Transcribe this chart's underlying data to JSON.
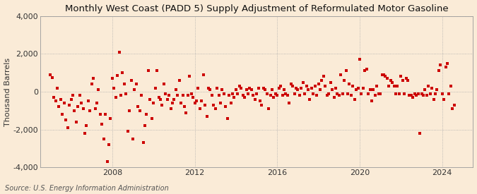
{
  "title": "Monthly West Coast (PADD 5) Supply Adjustment of Reformulated Motor Gasoline",
  "ylabel": "Thousand Barrels",
  "source": "Source: U.S. Energy Information Administration",
  "background_color": "#faebd7",
  "plot_background_color": "#faebd7",
  "dot_color": "#cc0000",
  "dot_size": 5,
  "ylim": [
    -4000,
    4000
  ],
  "yticks": [
    -4000,
    -2000,
    0,
    2000,
    4000
  ],
  "ytick_labels": [
    "-4,000",
    "-2,000",
    "0",
    "2,000",
    "4,000"
  ],
  "grid_color": "#aaaaaa",
  "grid_linestyle": ":",
  "title_fontsize": 9.5,
  "ylabel_fontsize": 8,
  "tick_fontsize": 8,
  "source_fontsize": 7,
  "x_values": [
    2005.0,
    2005.083,
    2005.167,
    2005.25,
    2005.333,
    2005.417,
    2005.5,
    2005.583,
    2005.667,
    2005.75,
    2005.833,
    2005.917,
    2006.0,
    2006.083,
    2006.167,
    2006.25,
    2006.333,
    2006.417,
    2006.5,
    2006.583,
    2006.667,
    2006.75,
    2006.833,
    2006.917,
    2007.0,
    2007.083,
    2007.167,
    2007.25,
    2007.333,
    2007.417,
    2007.5,
    2007.583,
    2007.667,
    2007.75,
    2007.833,
    2007.917,
    2008.0,
    2008.083,
    2008.167,
    2008.25,
    2008.333,
    2008.417,
    2008.5,
    2008.583,
    2008.667,
    2008.75,
    2008.833,
    2008.917,
    2009.0,
    2009.083,
    2009.167,
    2009.25,
    2009.333,
    2009.417,
    2009.5,
    2009.583,
    2009.667,
    2009.75,
    2009.833,
    2009.917,
    2010.0,
    2010.083,
    2010.167,
    2010.25,
    2010.333,
    2010.417,
    2010.5,
    2010.583,
    2010.667,
    2010.75,
    2010.833,
    2010.917,
    2011.0,
    2011.083,
    2011.167,
    2011.25,
    2011.333,
    2011.417,
    2011.5,
    2011.583,
    2011.667,
    2011.75,
    2011.833,
    2011.917,
    2012.0,
    2012.083,
    2012.167,
    2012.25,
    2012.333,
    2012.417,
    2012.5,
    2012.583,
    2012.667,
    2012.75,
    2012.833,
    2012.917,
    2013.0,
    2013.083,
    2013.167,
    2013.25,
    2013.333,
    2013.417,
    2013.5,
    2013.583,
    2013.667,
    2013.75,
    2013.833,
    2013.917,
    2014.0,
    2014.083,
    2014.167,
    2014.25,
    2014.333,
    2014.417,
    2014.5,
    2014.583,
    2014.667,
    2014.75,
    2014.833,
    2014.917,
    2015.0,
    2015.083,
    2015.167,
    2015.25,
    2015.333,
    2015.417,
    2015.5,
    2015.583,
    2015.667,
    2015.75,
    2015.833,
    2015.917,
    2016.0,
    2016.083,
    2016.167,
    2016.25,
    2016.333,
    2016.417,
    2016.5,
    2016.583,
    2016.667,
    2016.75,
    2016.833,
    2016.917,
    2017.0,
    2017.083,
    2017.167,
    2017.25,
    2017.333,
    2017.417,
    2017.5,
    2017.583,
    2017.667,
    2017.75,
    2017.833,
    2017.917,
    2018.0,
    2018.083,
    2018.167,
    2018.25,
    2018.333,
    2018.417,
    2018.5,
    2018.583,
    2018.667,
    2018.75,
    2018.833,
    2018.917,
    2019.0,
    2019.083,
    2019.167,
    2019.25,
    2019.333,
    2019.417,
    2019.5,
    2019.583,
    2019.667,
    2019.75,
    2019.833,
    2019.917,
    2020.0,
    2020.083,
    2020.167,
    2020.25,
    2020.333,
    2020.417,
    2020.5,
    2020.583,
    2020.667,
    2020.75,
    2020.833,
    2020.917,
    2021.0,
    2021.083,
    2021.167,
    2021.25,
    2021.333,
    2021.417,
    2021.5,
    2021.583,
    2021.667,
    2021.75,
    2021.833,
    2021.917,
    2022.0,
    2022.083,
    2022.167,
    2022.25,
    2022.333,
    2022.417,
    2022.5,
    2022.583,
    2022.667,
    2022.75,
    2022.833,
    2022.917,
    2023.0,
    2023.083,
    2023.167,
    2023.25,
    2023.333,
    2023.417,
    2023.5,
    2023.583,
    2023.667,
    2023.75,
    2023.833,
    2023.917,
    2024.0,
    2024.083,
    2024.167,
    2024.25,
    2024.333,
    2024.417,
    2024.5,
    2024.583
  ],
  "y_values": [
    900,
    750,
    -300,
    -500,
    200,
    -800,
    -400,
    -1200,
    -600,
    -1500,
    -1900,
    -700,
    -400,
    -200,
    -1000,
    -1600,
    -800,
    -200,
    -600,
    -900,
    -2200,
    -1800,
    -500,
    -1000,
    400,
    700,
    -900,
    -600,
    100,
    -1200,
    -1700,
    -2500,
    -1200,
    -3700,
    -2800,
    -1400,
    700,
    200,
    -300,
    850,
    2100,
    -200,
    1000,
    400,
    -100,
    -2100,
    -1000,
    600,
    -2500,
    100,
    400,
    -800,
    -1000,
    -200,
    -2700,
    -1800,
    -1200,
    1100,
    -400,
    -1400,
    -600,
    200,
    1100,
    -300,
    -400,
    -700,
    400,
    -100,
    -400,
    -200,
    -900,
    -600,
    -400,
    100,
    -200,
    600,
    -600,
    -200,
    -800,
    -1100,
    -200,
    800,
    -100,
    -300,
    -600,
    -500,
    200,
    -900,
    -500,
    900,
    -700,
    -1300,
    200,
    100,
    -200,
    -700,
    -900,
    200,
    -200,
    -600,
    100,
    -100,
    -800,
    -1400,
    -200,
    -600,
    -100,
    -300,
    100,
    -100,
    300,
    200,
    -200,
    -300,
    100,
    -100,
    200,
    100,
    -200,
    -400,
    -100,
    200,
    -500,
    -700,
    200,
    100,
    -100,
    -900,
    -200,
    100,
    -300,
    -100,
    -200,
    200,
    300,
    -200,
    100,
    -100,
    -200,
    -600,
    400,
    300,
    -100,
    200,
    100,
    -200,
    200,
    500,
    -100,
    300,
    100,
    -400,
    200,
    -100,
    300,
    -200,
    400,
    100,
    600,
    800,
    300,
    -200,
    -100,
    500,
    100,
    -300,
    200,
    -100,
    -200,
    900,
    -100,
    600,
    1100,
    -100,
    400,
    -200,
    300,
    -400,
    100,
    200,
    1700,
    -100,
    200,
    1100,
    1200,
    -100,
    100,
    -500,
    100,
    -200,
    300,
    -100,
    -100,
    900,
    900,
    800,
    700,
    300,
    600,
    500,
    300,
    -100,
    300,
    -100,
    800,
    600,
    -100,
    700,
    600,
    -200,
    -200,
    -300,
    -100,
    -200,
    -100,
    -2200,
    -100,
    -200,
    100,
    -200,
    300,
    -100,
    200,
    -400,
    -100,
    100,
    1100,
    1400,
    -100,
    -400,
    1300,
    1500,
    -100,
    300,
    -900,
    -700
  ],
  "xlim_start": 2004.5,
  "xlim_end": 2025.5,
  "xtick_positions": [
    2008,
    2012,
    2016,
    2020,
    2024
  ],
  "xtick_labels": [
    "2008",
    "2012",
    "2016",
    "2020",
    "2024"
  ]
}
